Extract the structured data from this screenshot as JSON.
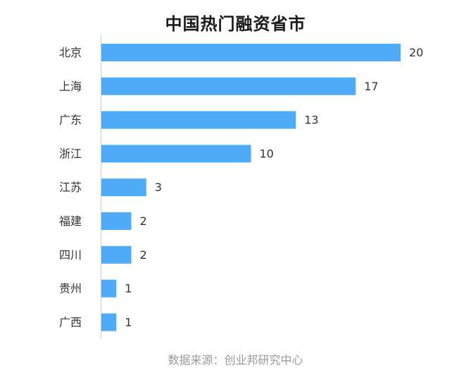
{
  "chart_data": {
    "type": "bar",
    "orientation": "horizontal",
    "title": "中国热门融资省市",
    "source": "数据来源：创业邦研究中心",
    "categories": [
      "北京",
      "上海",
      "广东",
      "浙江",
      "江苏",
      "福建",
      "四川",
      "贵州",
      "广西"
    ],
    "values": [
      20,
      17,
      13,
      10,
      3,
      2,
      2,
      1,
      1
    ],
    "xlim": [
      0,
      20
    ],
    "grid": false,
    "legend": "none",
    "data_labels": true,
    "bar_color": "#4DABF7",
    "axis_color": "#c8c8c8"
  }
}
